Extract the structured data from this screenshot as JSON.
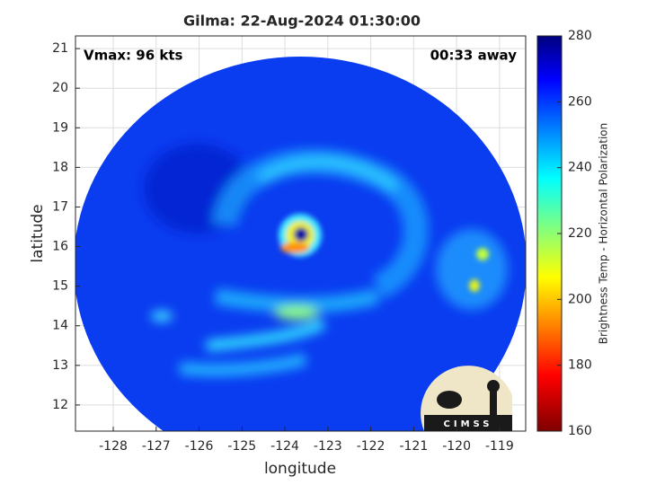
{
  "chart_data": {
    "type": "heatmap",
    "title": "Gilma: 22-Aug-2024 01:30:00",
    "annotation_left": "Vmax: 96 kts",
    "annotation_right": "00:33 away",
    "x_label": "longitude",
    "y_label": "latitude",
    "xlim": [
      -128.88,
      -118.39
    ],
    "xticks": [
      -128,
      -127,
      -126,
      -125,
      -124,
      -123,
      -122,
      -121,
      -120,
      -119
    ],
    "ylim": [
      11.34,
      21.32
    ],
    "yticks": [
      12,
      13,
      14,
      15,
      16,
      17,
      18,
      19,
      20,
      21
    ],
    "grid": true,
    "colorbar": {
      "label": "Brightness Temp - Horizontal Polarization",
      "lim": [
        160,
        280
      ],
      "ticks": [
        160,
        180,
        200,
        220,
        240,
        260,
        280
      ]
    }
  },
  "logo": "CIMSS"
}
